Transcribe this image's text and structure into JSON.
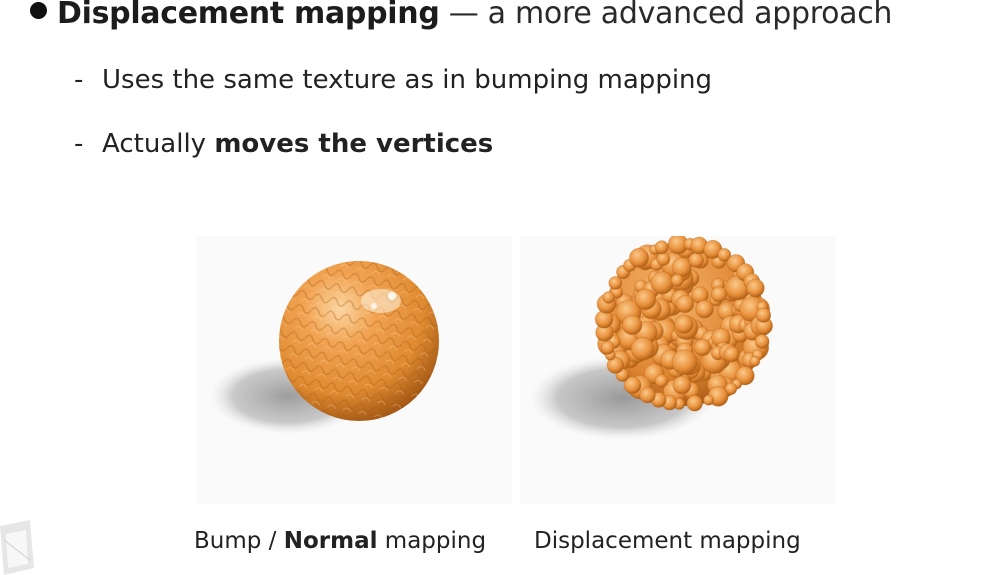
{
  "slide": {
    "main_bullet": {
      "bold_text": "Displacement mapping",
      "rest_text": " — a more advanced approach"
    },
    "sub_bullets": [
      {
        "dash": "-",
        "text": "Uses the same texture as in bumping mapping"
      },
      {
        "dash": "-",
        "prefix": "Actually ",
        "bold_text": "moves the vertices"
      }
    ],
    "captions": {
      "bump": {
        "prefix": "Bump / ",
        "bold": "Normal",
        "suffix": " mapping"
      },
      "displacement": {
        "text": "Displacement mapping"
      }
    },
    "colors": {
      "sphere_orange": "#e8913c",
      "sphere_highlight": "#fbd6a2",
      "sphere_dark": "#b15f14",
      "shadow": "#9a9a9a"
    }
  }
}
